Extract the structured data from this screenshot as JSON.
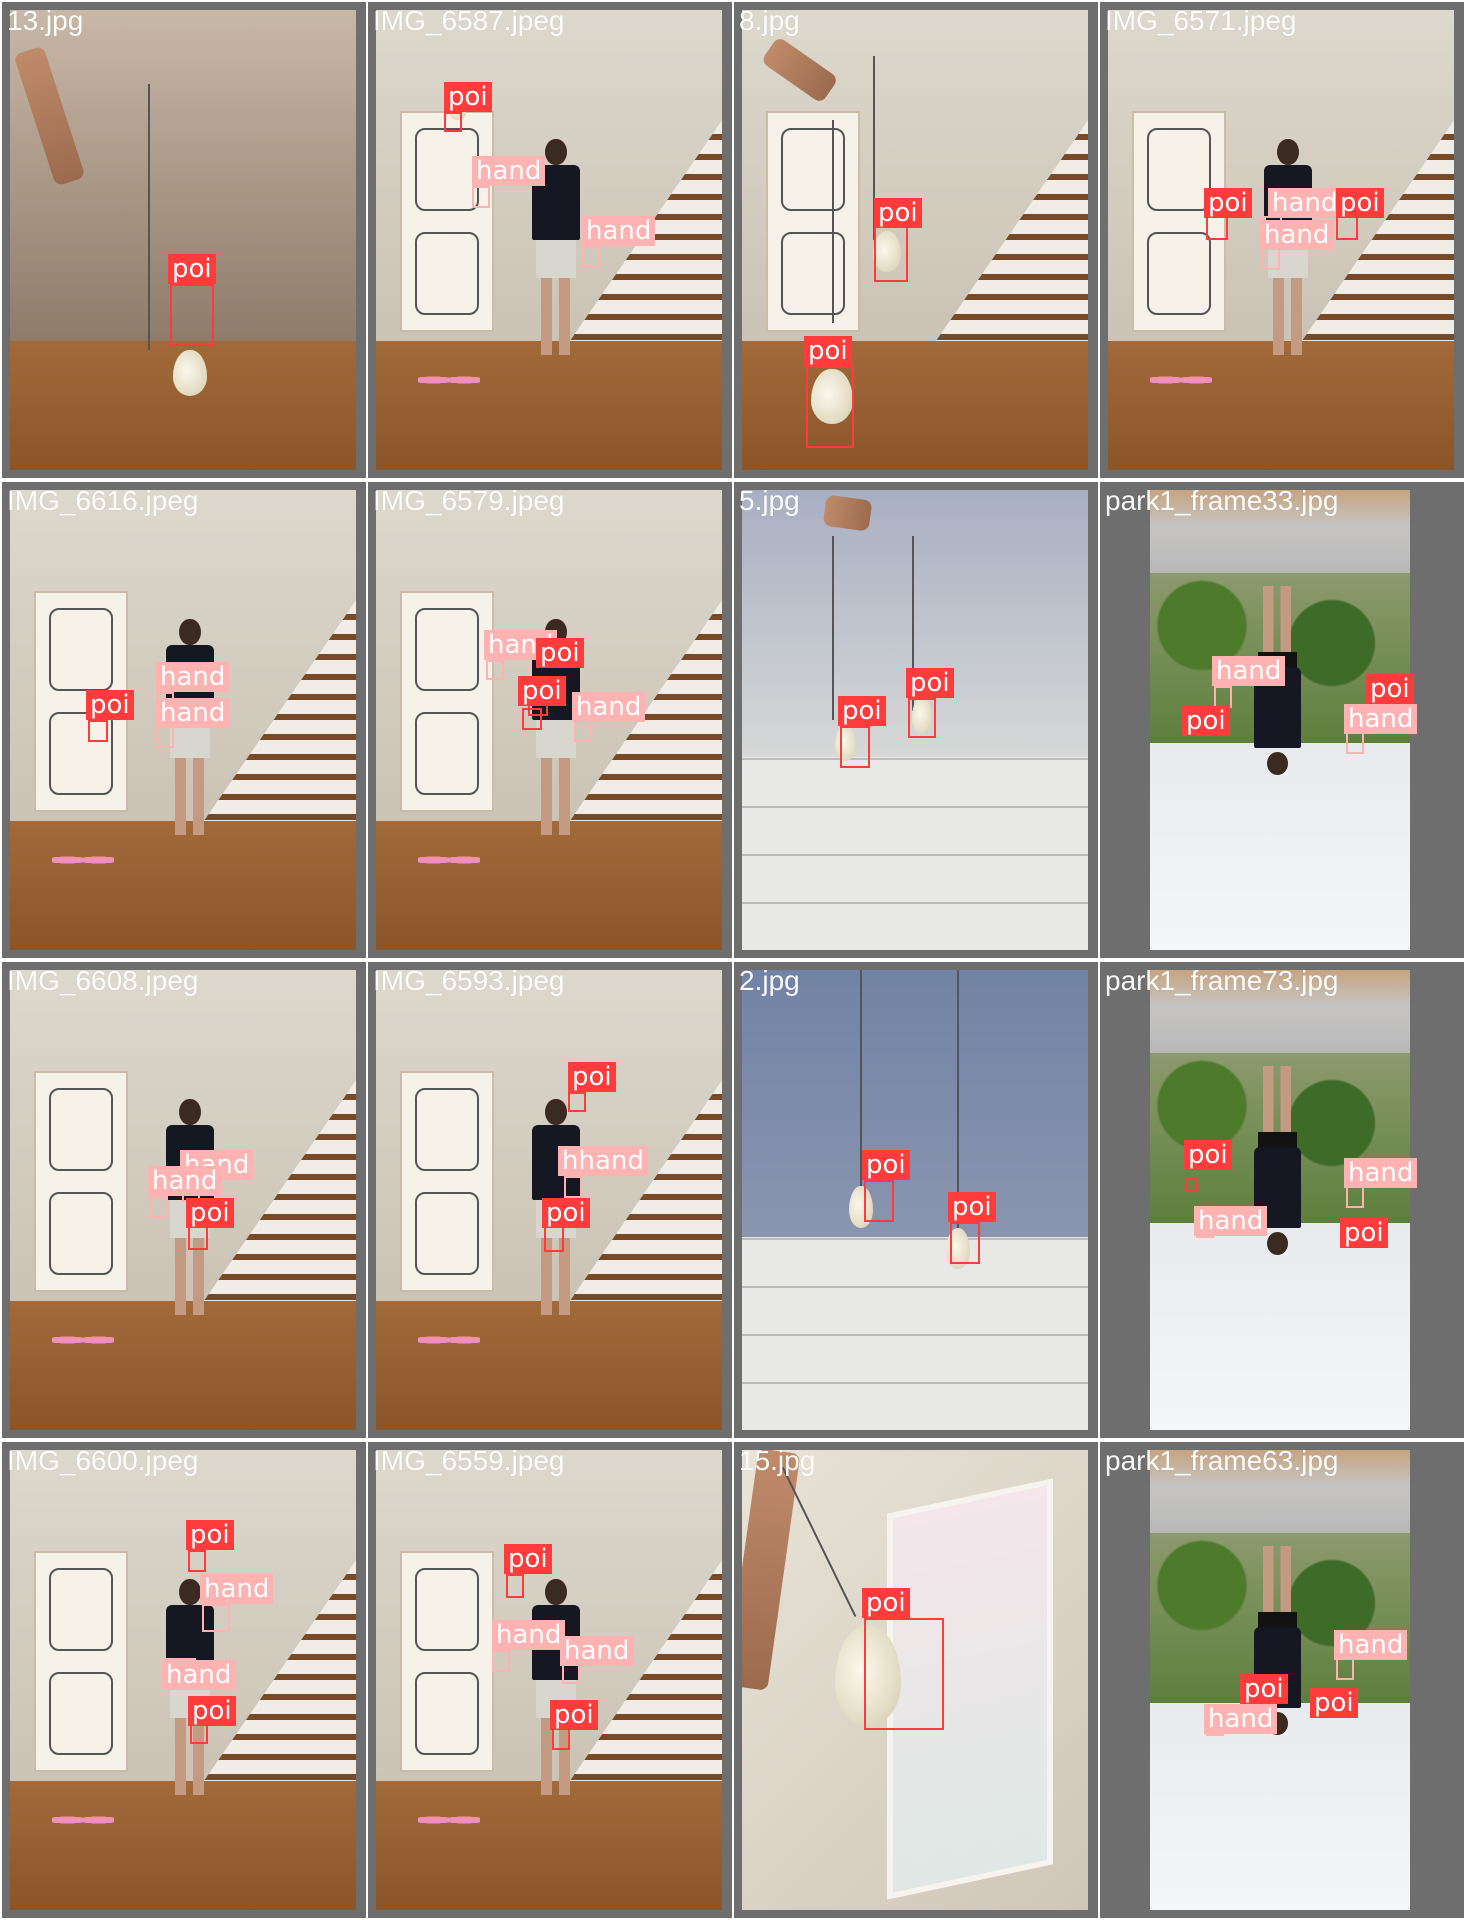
{
  "grid": {
    "columns": 4,
    "rows": 4
  },
  "classes": {
    "poi": "poi",
    "hand": "hand"
  },
  "colors": {
    "poi_box": "#ff3b3b",
    "hand_box": "#ffb2b2",
    "tile_background": "#6e6e6e",
    "label_text": "#ffffff"
  },
  "tiles": [
    {
      "filename": "13.jpg",
      "scene": "bedroom",
      "labels": [
        "poi"
      ]
    },
    {
      "filename": "IMG_6587.jpeg",
      "scene": "stair-room",
      "labels": [
        "poi",
        "hand",
        "hand"
      ]
    },
    {
      "filename": "8.jpg",
      "scene": "room",
      "labels": [
        "poi",
        "poi"
      ]
    },
    {
      "filename": "IMG_6571.jpeg",
      "scene": "stair-room",
      "labels": [
        "poi",
        "hand",
        "poi",
        "hand"
      ]
    },
    {
      "filename": "IMG_6616.jpeg",
      "scene": "stair-room",
      "labels": [
        "poi",
        "hand",
        "hand"
      ]
    },
    {
      "filename": "IMG_6579.jpeg",
      "scene": "stair-room",
      "labels": [
        "hand",
        "poi",
        "poi",
        "hand"
      ]
    },
    {
      "filename": "5.jpg",
      "scene": "kitchen",
      "labels": [
        "poi",
        "poi"
      ]
    },
    {
      "filename": "park1_frame33.jpg",
      "scene": "park",
      "labels": [
        "hand",
        "poi",
        "poi",
        "hand"
      ]
    },
    {
      "filename": "IMG_6608.jpeg",
      "scene": "stair-room",
      "labels": [
        "hand",
        "hand",
        "poi"
      ]
    },
    {
      "filename": "IMG_6593.jpeg",
      "scene": "stair-room",
      "labels": [
        "poi",
        "hhand",
        "poi"
      ]
    },
    {
      "filename": "2.jpg",
      "scene": "dining",
      "labels": [
        "poi",
        "poi"
      ]
    },
    {
      "filename": "park1_frame73.jpg",
      "scene": "park",
      "labels": [
        "poi",
        "hand",
        "hand",
        "poi"
      ]
    },
    {
      "filename": "IMG_6600.jpeg",
      "scene": "stair-room",
      "labels": [
        "poi",
        "hand",
        "hand",
        "poi"
      ]
    },
    {
      "filename": "IMG_6559.jpeg",
      "scene": "stair-room",
      "labels": [
        "poi",
        "hand",
        "hand",
        "poi"
      ]
    },
    {
      "filename": "15.jpg",
      "scene": "hall",
      "labels": [
        "poi"
      ]
    },
    {
      "filename": "park1_frame63.jpg",
      "scene": "park",
      "labels": [
        "hand",
        "poi",
        "poi",
        "hand"
      ]
    }
  ]
}
